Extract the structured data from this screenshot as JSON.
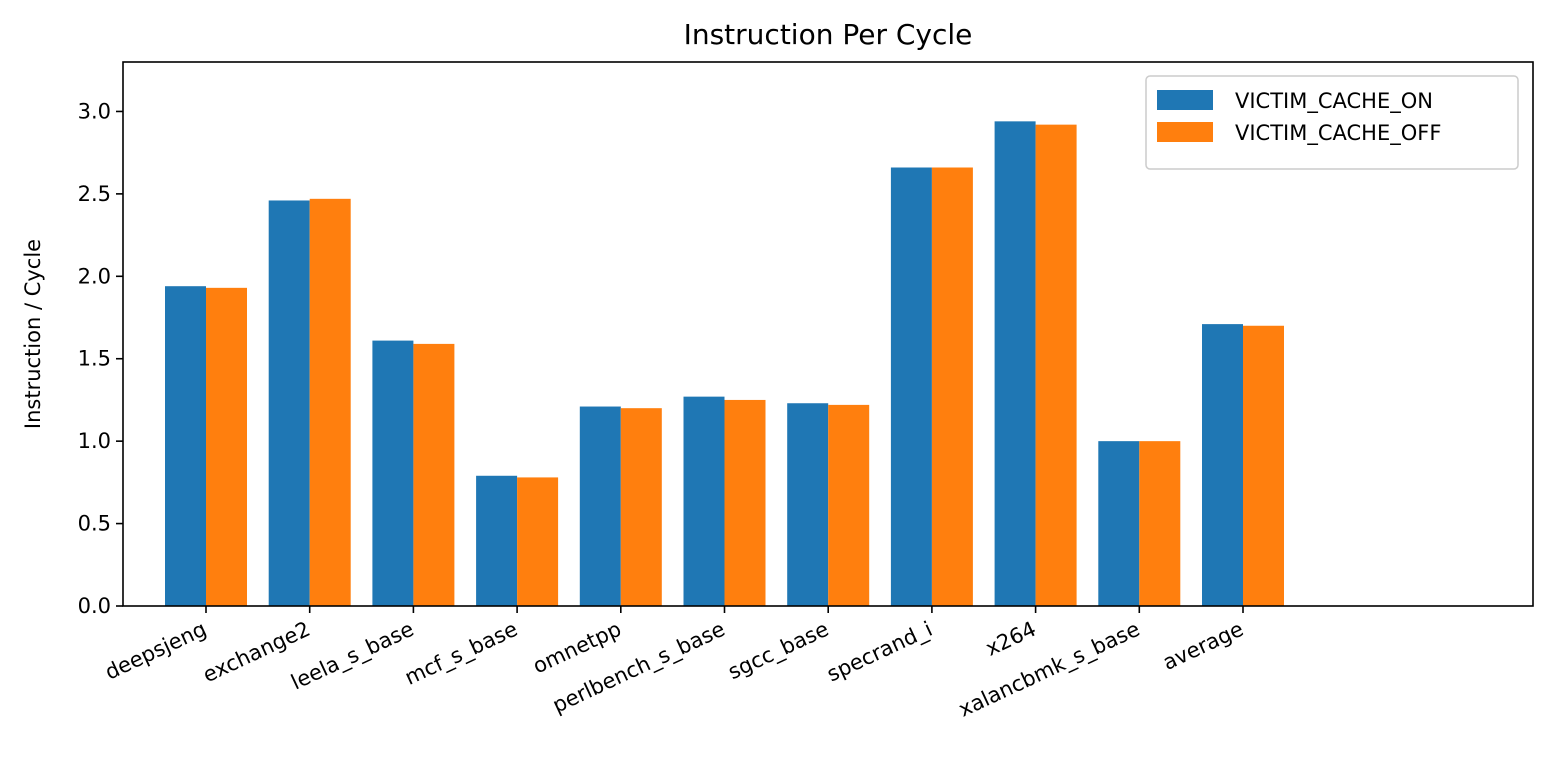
{
  "chart_data": {
    "type": "bar",
    "title": "Instruction Per Cycle",
    "xlabel": "",
    "ylabel": "Instruction / Cycle",
    "categories": [
      "deepsjeng",
      "exchange2",
      "leela_s_base",
      "mcf_s_base",
      "omnetpp",
      "perlbench_s_base",
      "sgcc_base",
      "specrand_i",
      "x264",
      "xalancbmk_s_base",
      "average"
    ],
    "series": [
      {
        "name": "VICTIM_CACHE_ON",
        "color": "#1f77b4",
        "values": [
          1.94,
          2.46,
          1.61,
          0.79,
          1.21,
          1.27,
          1.23,
          2.66,
          2.94,
          1.0,
          1.71
        ]
      },
      {
        "name": "VICTIM_CACHE_OFF",
        "color": "#ff7f0e",
        "values": [
          1.93,
          2.47,
          1.59,
          0.78,
          1.2,
          1.25,
          1.22,
          2.66,
          2.92,
          1.0,
          1.7
        ]
      }
    ],
    "ylim": [
      0,
      3.3
    ],
    "yticks": [
      "0.0",
      "0.5",
      "1.0",
      "1.5",
      "2.0",
      "2.5",
      "3.0"
    ],
    "grid": false,
    "legend_position": "top-right"
  }
}
